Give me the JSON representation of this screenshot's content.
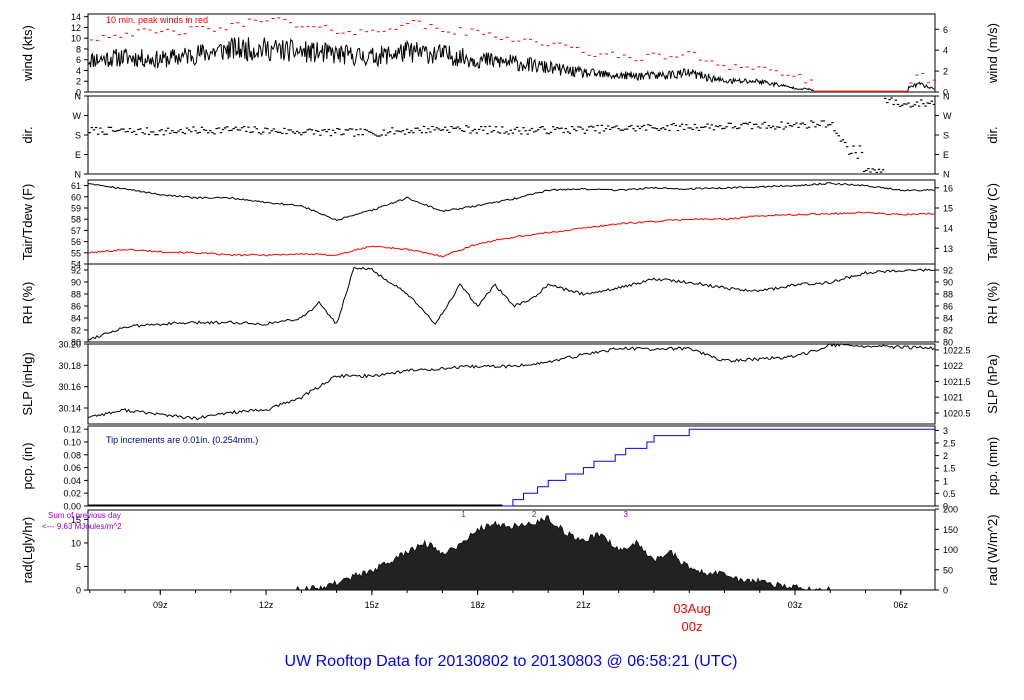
{
  "figure": {
    "title": "UW Rooftop Data for 20130802  to  20130803 @ 06:58:21  (UTC)"
  },
  "time_axis": {
    "ticks": [
      {
        "label": "09z",
        "hour": 9
      },
      {
        "label": "12z",
        "hour": 12
      },
      {
        "label": "15z",
        "hour": 15
      },
      {
        "label": "18z",
        "hour": 18
      },
      {
        "label": "21z",
        "hour": 21
      },
      {
        "label": "03z",
        "hour": 27
      },
      {
        "label": "06z",
        "hour": 30
      }
    ],
    "date_marker": {
      "date": "03Aug",
      "time": "00z",
      "hour": 24
    },
    "range_hours": [
      6.95,
      30.97
    ]
  },
  "panels": {
    "wind": {
      "left_label": "wind (kts)",
      "right_label": "wind (m/s)",
      "note": "10 min. peak winds in red",
      "left_ticks": [
        "0",
        "2",
        "4",
        "6",
        "8",
        "10",
        "12",
        "14"
      ],
      "right_ticks": [
        "0",
        "2",
        "4",
        "6"
      ]
    },
    "dir": {
      "left_label": "dir.",
      "right_label": "dir.",
      "left_ticks": [
        "N",
        "E",
        "S",
        "W",
        "N"
      ],
      "right_ticks": [
        "N",
        "E",
        "S",
        "W",
        "N"
      ]
    },
    "temp": {
      "left_label": "Tair/Tdew (F)",
      "right_label": "Tair/Tdew (C)",
      "left_ticks": [
        "54",
        "55",
        "56",
        "57",
        "58",
        "59",
        "60",
        "61"
      ],
      "right_ticks": [
        "13",
        "14",
        "15",
        "16"
      ]
    },
    "rh": {
      "left_label": "RH (%)",
      "right_label": "RH (%)",
      "left_ticks": [
        "80",
        "82",
        "84",
        "86",
        "88",
        "90",
        "92"
      ],
      "right_ticks": [
        "80",
        "82",
        "84",
        "86",
        "88",
        "90",
        "92"
      ]
    },
    "slp": {
      "left_label": "SLP (inHg)",
      "right_label": "SLP (hPa)",
      "left_ticks": [
        "30.14",
        "30.16",
        "30.18",
        "30.20"
      ],
      "right_ticks": [
        "1020.5",
        "1021",
        "1021.5",
        "1022",
        "1022.5"
      ]
    },
    "pcp": {
      "left_label": "pcp. (in)",
      "right_label": "pcp. (mm)",
      "note": "Tip increments are 0.01in. (0.254mm.)",
      "left_ticks": [
        "0.00",
        "0.02",
        "0.04",
        "0.06",
        "0.08",
        "0.10",
        "0.12"
      ],
      "right_ticks": [
        "0",
        "0.5",
        "1",
        "1.5",
        "2",
        "2.5",
        "3"
      ]
    },
    "rad": {
      "left_label": "rad(Lgly/hr)",
      "right_label": "rad (W/m^2)",
      "note_line1": "Sum of previous day",
      "note_line2": "<--- 9.63 MJoules/m^2",
      "left_ticks": [
        "0",
        "5",
        "10",
        "15"
      ],
      "right_ticks": [
        "0",
        "50",
        "100",
        "150",
        "200"
      ],
      "markers": [
        "1",
        "2",
        "3"
      ]
    }
  },
  "colors": {
    "axis": "#000000",
    "tair": "#000000",
    "tdew": "#ff0000",
    "peak_wind": "#ff0000",
    "precip": "#0000ff",
    "precip_note": "#00008b",
    "rad_note": "#9400d3",
    "rad_marker": "#9400d3",
    "date_marker": "#ff0000",
    "title": "#0000ff"
  },
  "chart_data": [
    {
      "type": "line",
      "name": "wind",
      "xlabel": "",
      "ylabel": "wind (kts)",
      "ylim": [
        0,
        14.5
      ],
      "series": [
        {
          "name": "wind",
          "x": [
            7,
            8,
            9,
            10,
            11,
            12,
            13,
            14,
            15,
            16,
            17,
            18,
            19,
            20,
            21,
            22,
            23,
            24,
            25,
            26,
            27,
            28,
            29,
            30,
            30.5,
            31
          ],
          "values": [
            6,
            6.5,
            6,
            7,
            8,
            8,
            7.5,
            7,
            6.5,
            7.5,
            7,
            6,
            5.5,
            4.5,
            3.5,
            3,
            3,
            3.5,
            2,
            2,
            0.7,
            0.2,
            0.2,
            0.2,
            1.5,
            0.5
          ]
        },
        {
          "name": "10 min peak",
          "x": [
            7,
            8,
            9,
            10,
            11,
            12,
            13,
            14,
            15,
            16,
            17,
            18,
            19,
            20,
            21,
            22,
            23,
            24,
            25,
            26,
            27,
            28,
            29,
            30,
            30.5,
            31
          ],
          "values": [
            10,
            11,
            11,
            11.5,
            12,
            14,
            12,
            11.5,
            11,
            13,
            11.5,
            11,
            10,
            9,
            7.5,
            6.5,
            6.5,
            7,
            5,
            4.5,
            3,
            0,
            0,
            0,
            3,
            2
          ]
        }
      ]
    },
    {
      "type": "scatter",
      "name": "dir",
      "ylabel": "dir.",
      "ylim": [
        0,
        360
      ],
      "series": [
        {
          "name": "direction",
          "x": [
            7,
            9,
            11,
            13,
            15,
            17,
            19,
            21,
            23,
            25,
            27,
            28,
            28.6,
            29,
            29.5,
            30,
            31
          ],
          "values": [
            200,
            195,
            205,
            195,
            190,
            210,
            200,
            205,
            215,
            220,
            225,
            235,
            100,
            20,
            350,
            320,
            330
          ]
        }
      ]
    },
    {
      "type": "line",
      "name": "temperature",
      "ylabel": "Tair/Tdew (F)",
      "ylim": [
        54,
        61.5
      ],
      "series": [
        {
          "name": "Tair",
          "x": [
            7,
            8,
            9,
            10,
            11,
            12,
            13,
            14,
            15,
            16,
            17,
            18,
            19,
            20,
            21,
            22,
            23,
            24,
            25,
            26,
            27,
            28,
            29,
            30,
            31
          ],
          "values": [
            61.2,
            60.7,
            60.2,
            59.9,
            59.9,
            59.5,
            59.2,
            57.9,
            58.8,
            59.9,
            58.7,
            59.2,
            59.8,
            60.6,
            60.7,
            60.6,
            60.8,
            60.7,
            60.8,
            60.9,
            61,
            61.2,
            61,
            60.6,
            60.6
          ]
        },
        {
          "name": "Tdew",
          "x": [
            7,
            8,
            9,
            10,
            11,
            12,
            13,
            14,
            15,
            16,
            17,
            18,
            19,
            20,
            21,
            22,
            23,
            24,
            25,
            26,
            27,
            28,
            29,
            30,
            31
          ],
          "values": [
            55,
            55.3,
            55.1,
            55,
            54.8,
            54.8,
            54.9,
            54.8,
            55.6,
            55.3,
            54.7,
            55.8,
            56.4,
            56.8,
            57.2,
            57.6,
            57.8,
            58,
            58,
            58.3,
            58.4,
            58.5,
            58.6,
            58.4,
            58.5
          ]
        }
      ]
    },
    {
      "type": "line",
      "name": "rh",
      "ylabel": "RH (%)",
      "ylim": [
        80,
        93
      ],
      "series": [
        {
          "name": "RH",
          "x": [
            7,
            8,
            9,
            10,
            11,
            12,
            13,
            13.5,
            14,
            14.5,
            15,
            16,
            16.8,
            17.5,
            18,
            18.5,
            19,
            19.5,
            20,
            21,
            22,
            23,
            24,
            25,
            26,
            27,
            28,
            29,
            30,
            31
          ],
          "values": [
            80.5,
            82.5,
            83,
            83.2,
            83.3,
            83,
            84,
            86.5,
            83,
            92.5,
            92,
            88,
            83,
            89.5,
            86,
            89.5,
            86,
            87,
            89.5,
            88,
            89,
            90.5,
            90,
            89,
            88.5,
            89.5,
            90,
            91.5,
            92,
            92
          ]
        }
      ]
    },
    {
      "type": "line",
      "name": "slp",
      "ylabel": "SLP (inHg)",
      "ylim": [
        30.125,
        30.2
      ],
      "series": [
        {
          "name": "SLP",
          "x": [
            7,
            8,
            9,
            10,
            11,
            12,
            13,
            14,
            15,
            16,
            17,
            18,
            19,
            20,
            21,
            22,
            23,
            24,
            25,
            26,
            27,
            28,
            29,
            30,
            31
          ],
          "values": [
            30.132,
            30.138,
            30.134,
            30.13,
            30.136,
            30.138,
            30.15,
            30.17,
            30.17,
            30.175,
            30.177,
            30.179,
            30.179,
            30.183,
            30.19,
            30.196,
            30.195,
            30.196,
            30.184,
            30.186,
            30.188,
            30.199,
            30.198,
            30.197,
            30.196
          ]
        }
      ]
    },
    {
      "type": "line",
      "name": "pcp",
      "ylabel": "pcp. (in)",
      "ylim": [
        0,
        0.125
      ],
      "series": [
        {
          "name": "accumulated precip",
          "x": [
            18.7,
            19,
            19.3,
            19.7,
            20,
            20.5,
            21,
            21.3,
            21.9,
            22.2,
            22.8,
            23,
            24,
            30.97
          ],
          "values": [
            0,
            0.01,
            0.02,
            0.03,
            0.04,
            0.05,
            0.06,
            0.07,
            0.08,
            0.09,
            0.1,
            0.11,
            0.12,
            0.12
          ]
        }
      ]
    },
    {
      "type": "area",
      "name": "rad",
      "ylabel": "rad(Lgly/hr)",
      "ylim": [
        0,
        17
      ],
      "series": [
        {
          "name": "solar radiation",
          "x": [
            12.8,
            13.5,
            14,
            14.5,
            15,
            15.5,
            16,
            16.5,
            17,
            17.5,
            18,
            18.5,
            19,
            19.5,
            20,
            20.5,
            21,
            21.5,
            22,
            22.5,
            23,
            23.5,
            24,
            24.5,
            25,
            25.5,
            26,
            26.5,
            27,
            27.5,
            28
          ],
          "values": [
            0,
            0.5,
            1.5,
            3,
            4,
            6,
            8,
            10,
            8,
            9.5,
            13,
            14,
            13.5,
            14,
            15.5,
            12,
            10.5,
            12,
            8.5,
            10,
            6.5,
            8,
            4.5,
            3.5,
            3.5,
            2,
            2,
            1,
            0.5,
            0.1,
            0
          ]
        }
      ]
    }
  ]
}
